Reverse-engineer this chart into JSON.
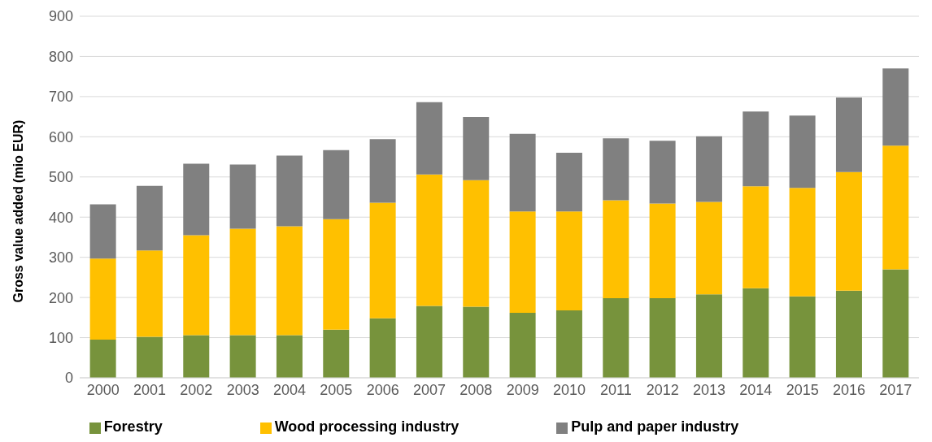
{
  "chart_data": {
    "type": "bar",
    "stacked": true,
    "ylabel": "Gross value added (mio EUR)",
    "categories": [
      "2000",
      "2001",
      "2002",
      "2003",
      "2004",
      "2005",
      "2006",
      "2007",
      "2008",
      "2009",
      "2010",
      "2011",
      "2012",
      "2013",
      "2014",
      "2015",
      "2016",
      "2017"
    ],
    "series": [
      {
        "name": "Forestry",
        "color": "#77933c",
        "values": [
          95,
          102,
          106,
          106,
          106,
          120,
          148,
          179,
          177,
          162,
          168,
          198,
          198,
          208,
          223,
          203,
          217,
          270
        ]
      },
      {
        "name": "Wood processing industry",
        "color": "#ffc000",
        "values": [
          202,
          215,
          249,
          265,
          271,
          275,
          288,
          327,
          315,
          252,
          246,
          244,
          236,
          230,
          254,
          270,
          295,
          308
        ]
      },
      {
        "name": "Pulp and paper industry",
        "color": "#808080",
        "values": [
          135,
          161,
          178,
          160,
          176,
          172,
          158,
          180,
          157,
          193,
          146,
          154,
          156,
          163,
          186,
          180,
          186,
          192
        ]
      }
    ],
    "ylim": [
      0,
      900
    ],
    "yticks": [
      0,
      100,
      200,
      300,
      400,
      500,
      600,
      700,
      800,
      900
    ],
    "grid": "y",
    "legend": "bottom"
  }
}
